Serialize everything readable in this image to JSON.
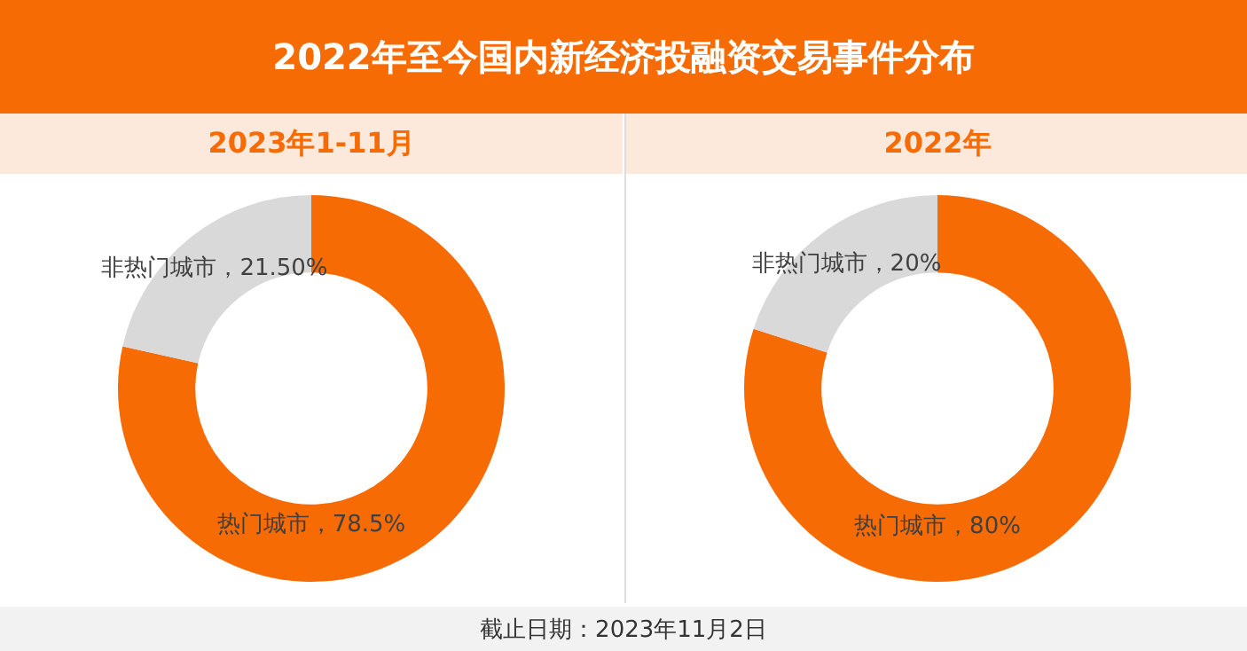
{
  "chart_data": [
    {
      "type": "donut",
      "title": "2022年至今国内新经济投融资交易事件分布",
      "subtitle": "2023年1-11月",
      "categories": [
        "热门城市",
        "非热门城市"
      ],
      "values": [
        78.5,
        21.5
      ],
      "value_labels": [
        "78.5%",
        "21.50%"
      ],
      "colors": [
        "#f76b05",
        "#d9d9d9"
      ],
      "legend": false
    },
    {
      "type": "donut",
      "subtitle": "2022年",
      "categories": [
        "热门城市",
        "非热门城市"
      ],
      "values": [
        80,
        20
      ],
      "value_labels": [
        "80%",
        "20%"
      ],
      "colors": [
        "#f76b05",
        "#d9d9d9"
      ],
      "legend": false,
      "annotations": [
        "截止日期：2023年11月2日"
      ]
    }
  ]
}
